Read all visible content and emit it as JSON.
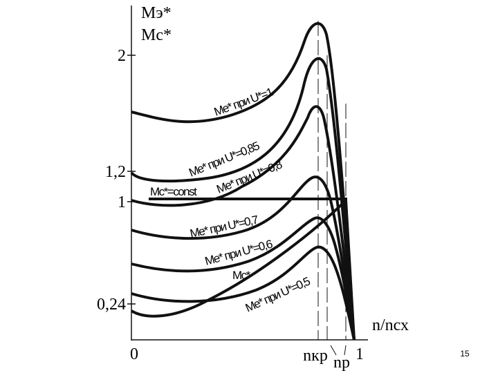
{
  "axes": {
    "y_label_1": "Mэ*",
    "y_label_2": "Mс*",
    "x_label": "n/nсх",
    "y_ticks": [
      "2",
      "1,2",
      "1",
      "0,24"
    ],
    "x_ticks": [
      "0",
      "1"
    ],
    "x_marks": [
      "nкр",
      "nр"
    ]
  },
  "curve_labels": [
    "Mе* при U*=1",
    "Mе* при U*=0,85",
    "Mе* при U*=0,8",
    "Mс*=const",
    "Mе* при U*=0,7",
    "Mе* при U*=0,6",
    "Mс*",
    "Mе* при U*=0,5"
  ],
  "slide_number": "15"
}
